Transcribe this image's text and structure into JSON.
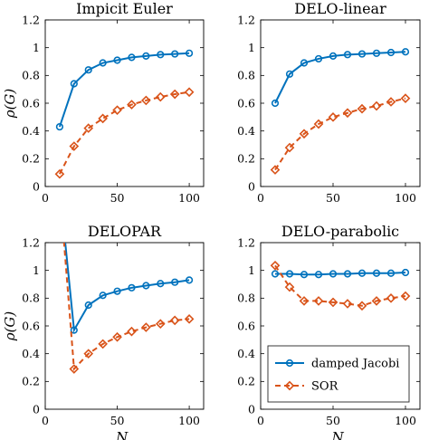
{
  "colors": {
    "jacobi": "#0072BD",
    "sor": "#D95319",
    "axis": "#000000",
    "legend_edge": "#262626"
  },
  "legend": {
    "entries": [
      "damped Jacobi",
      "SOR"
    ],
    "placement": "inside lower-right of bottom-right panel"
  },
  "chart_data": [
    {
      "type": "line",
      "title": "Impicit Euler",
      "ylabel": "ρ(G)",
      "xlabel": "",
      "xlim": [
        0,
        110
      ],
      "ylim": [
        0,
        1.2
      ],
      "xticks": [
        "0",
        "50",
        "100"
      ],
      "yticks": [
        "0",
        "0.2",
        "0.4",
        "0.6",
        "0.8",
        "1",
        "1.2"
      ],
      "grid": false,
      "x": [
        10,
        20,
        30,
        40,
        50,
        60,
        70,
        80,
        90,
        100
      ],
      "series": [
        {
          "name": "damped Jacobi",
          "style": "solid-circle",
          "values": [
            0.43,
            0.74,
            0.84,
            0.89,
            0.91,
            0.93,
            0.94,
            0.95,
            0.955,
            0.96
          ]
        },
        {
          "name": "SOR",
          "style": "dashed-diamond",
          "values": [
            0.09,
            0.29,
            0.42,
            0.49,
            0.55,
            0.59,
            0.62,
            0.645,
            0.665,
            0.68
          ]
        }
      ]
    },
    {
      "type": "line",
      "title": "DELO-linear",
      "ylabel": "",
      "xlabel": "",
      "xlim": [
        0,
        110
      ],
      "ylim": [
        0,
        1.2
      ],
      "xticks": [
        "0",
        "50",
        "100"
      ],
      "yticks": [
        "0",
        "0.2",
        "0.4",
        "0.6",
        "0.8",
        "1",
        "1.2"
      ],
      "grid": false,
      "x": [
        10,
        20,
        30,
        40,
        50,
        60,
        70,
        80,
        90,
        100
      ],
      "series": [
        {
          "name": "damped Jacobi",
          "style": "solid-circle",
          "values": [
            0.6,
            0.81,
            0.89,
            0.92,
            0.94,
            0.95,
            0.955,
            0.96,
            0.965,
            0.97
          ]
        },
        {
          "name": "SOR",
          "style": "dashed-diamond",
          "values": [
            0.12,
            0.28,
            0.38,
            0.45,
            0.5,
            0.53,
            0.56,
            0.58,
            0.61,
            0.635
          ]
        }
      ]
    },
    {
      "type": "line",
      "title": "DELOPAR",
      "ylabel": "ρ(G)",
      "xlabel": "Ns",
      "xlim": [
        0,
        110
      ],
      "ylim": [
        0,
        1.2
      ],
      "xticks": [
        "0",
        "50",
        "100"
      ],
      "yticks": [
        "0",
        "0.2",
        "0.4",
        "0.6",
        "0.8",
        "1",
        "1.2"
      ],
      "grid": false,
      "x": [
        10,
        20,
        30,
        40,
        50,
        60,
        70,
        80,
        90,
        100
      ],
      "series": [
        {
          "name": "damped Jacobi",
          "style": "solid-circle",
          "values": [
            1.6,
            0.57,
            0.75,
            0.82,
            0.85,
            0.875,
            0.89,
            0.905,
            0.915,
            0.93
          ],
          "markers_from_index": 1
        },
        {
          "name": "SOR",
          "style": "dashed-diamond",
          "values": [
            1.6,
            0.29,
            0.4,
            0.47,
            0.52,
            0.56,
            0.59,
            0.615,
            0.64,
            0.65
          ],
          "markers_from_index": 1
        }
      ]
    },
    {
      "type": "line",
      "title": "DELO-parabolic",
      "ylabel": "",
      "xlabel": "Ns",
      "xlim": [
        0,
        110
      ],
      "ylim": [
        0,
        1.2
      ],
      "xticks": [
        "0",
        "50",
        "100"
      ],
      "yticks": [
        "0",
        "0.2",
        "0.4",
        "0.6",
        "0.8",
        "1",
        "1.2"
      ],
      "grid": false,
      "x": [
        10,
        20,
        30,
        40,
        50,
        60,
        70,
        80,
        90,
        100
      ],
      "series": [
        {
          "name": "damped Jacobi",
          "style": "solid-circle",
          "values": [
            0.975,
            0.975,
            0.97,
            0.97,
            0.975,
            0.975,
            0.98,
            0.98,
            0.98,
            0.985
          ]
        },
        {
          "name": "SOR",
          "style": "dashed-diamond",
          "values": [
            1.035,
            0.88,
            0.78,
            0.78,
            0.77,
            0.76,
            0.745,
            0.78,
            0.8,
            0.815
          ]
        }
      ]
    }
  ]
}
